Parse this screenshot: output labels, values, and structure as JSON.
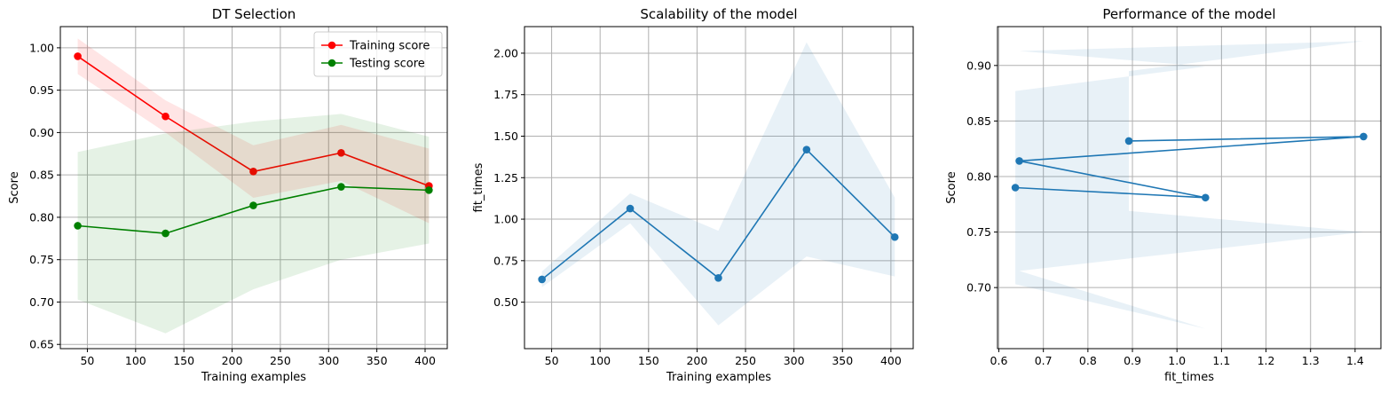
{
  "chart_data": [
    {
      "type": "line",
      "title": "DT Selection",
      "xlabel": "Training examples",
      "ylabel": "Score",
      "xlim": [
        22,
        423
      ],
      "ylim": [
        0.645,
        1.025
      ],
      "xticks": [
        50,
        100,
        150,
        200,
        250,
        300,
        350,
        400
      ],
      "yticks": [
        0.65,
        0.7,
        0.75,
        0.8,
        0.85,
        0.9,
        0.95,
        1.0
      ],
      "ytick_decimals": 2,
      "grid": true,
      "legend": "top-right",
      "x": [
        40,
        131,
        222,
        313,
        404
      ],
      "series": [
        {
          "name": "Training score",
          "color": "#ff0000",
          "values": [
            0.99,
            0.919,
            0.854,
            0.876,
            0.837
          ],
          "band_low": [
            0.969,
            0.9,
            0.823,
            0.843,
            0.793
          ],
          "band_high": [
            1.011,
            0.938,
            0.885,
            0.909,
            0.881
          ]
        },
        {
          "name": "Testing score",
          "color": "#008000",
          "values": [
            0.79,
            0.781,
            0.814,
            0.836,
            0.832
          ],
          "band_low": [
            0.703,
            0.663,
            0.715,
            0.75,
            0.769
          ],
          "band_high": [
            0.877,
            0.899,
            0.913,
            0.922,
            0.895
          ]
        }
      ]
    },
    {
      "type": "line",
      "title": "Scalability of the model",
      "xlabel": "Training examples",
      "ylabel": "fit_times",
      "xlim": [
        22,
        423
      ],
      "ylim": [
        0.22,
        2.16
      ],
      "xticks": [
        50,
        100,
        150,
        200,
        250,
        300,
        350,
        400
      ],
      "yticks": [
        0.5,
        0.75,
        1.0,
        1.25,
        1.5,
        1.75,
        2.0
      ],
      "ytick_decimals": 2,
      "grid": true,
      "x": [
        40,
        131,
        222,
        313,
        404
      ],
      "series": [
        {
          "color": "#1f77b4",
          "values": [
            0.637,
            1.064,
            0.646,
            1.419,
            0.892
          ],
          "band_low": [
            0.59,
            0.975,
            0.36,
            0.775,
            0.655
          ],
          "band_high": [
            0.685,
            1.155,
            0.93,
            2.065,
            1.13
          ]
        }
      ]
    },
    {
      "type": "line",
      "title": "Performance of the model",
      "xlabel": "fit_times",
      "ylabel": "Score",
      "xlim": [
        0.597,
        1.458
      ],
      "ylim": [
        0.645,
        0.935
      ],
      "xticks": [
        0.6,
        0.7,
        0.8,
        0.9,
        1.0,
        1.1,
        1.2,
        1.3,
        1.4
      ],
      "yticks": [
        0.7,
        0.75,
        0.8,
        0.85,
        0.9
      ],
      "xtick_decimals": 1,
      "ytick_decimals": 2,
      "grid": true,
      "x": [
        0.637,
        1.064,
        0.646,
        1.419,
        0.892
      ],
      "series": [
        {
          "color": "#1f77b4",
          "values": [
            0.79,
            0.781,
            0.814,
            0.836,
            0.832
          ],
          "band_low": [
            0.703,
            0.663,
            0.715,
            0.75,
            0.769
          ],
          "band_high": [
            0.877,
            0.899,
            0.913,
            0.922,
            0.895
          ]
        }
      ]
    }
  ]
}
